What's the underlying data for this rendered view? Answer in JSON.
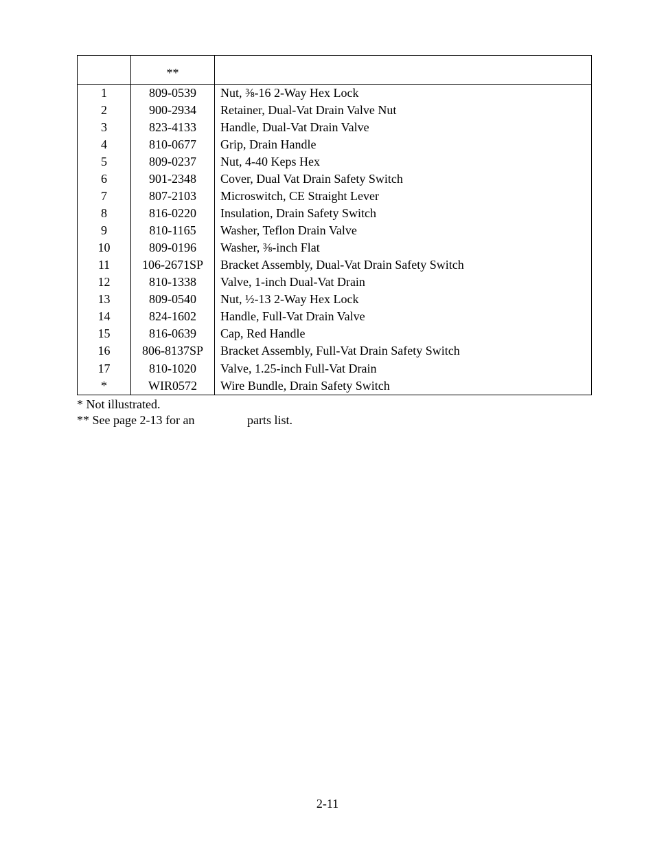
{
  "table": {
    "header": {
      "item": "",
      "part_marker": "**",
      "description": ""
    },
    "rows": [
      {
        "item": "1",
        "part": "809-0539",
        "desc": "Nut, ⅜-16 2-Way Hex Lock"
      },
      {
        "item": "2",
        "part": "900-2934",
        "desc": "Retainer, Dual-Vat Drain Valve Nut"
      },
      {
        "item": "3",
        "part": "823-4133",
        "desc": "Handle, Dual-Vat Drain Valve"
      },
      {
        "item": "4",
        "part": "810-0677",
        "desc": "Grip, Drain Handle"
      },
      {
        "item": "5",
        "part": "809-0237",
        "desc": "Nut, 4-40 Keps Hex"
      },
      {
        "item": "6",
        "part": "901-2348",
        "desc": "Cover, Dual Vat Drain Safety Switch"
      },
      {
        "item": "7",
        "part": "807-2103",
        "desc": "Microswitch, CE Straight Lever"
      },
      {
        "item": "8",
        "part": "816-0220",
        "desc": "Insulation, Drain Safety Switch"
      },
      {
        "item": "9",
        "part": "810-1165",
        "desc": "Washer, Teflon Drain Valve"
      },
      {
        "item": "10",
        "part": "809-0196",
        "desc": "Washer, ⅜-inch Flat"
      },
      {
        "item": "11",
        "part": "106-2671SP",
        "desc": "Bracket Assembly, Dual-Vat Drain Safety Switch"
      },
      {
        "item": "12",
        "part": "810-1338",
        "desc": "Valve, 1-inch Dual-Vat Drain"
      },
      {
        "item": "13",
        "part": "809-0540",
        "desc": "Nut, ½-13 2-Way Hex Lock"
      },
      {
        "item": "14",
        "part": "824-1602",
        "desc": "Handle, Full-Vat Drain Valve"
      },
      {
        "item": "15",
        "part": "816-0639",
        "desc": "Cap, Red Handle"
      },
      {
        "item": "16",
        "part": "806-8137SP",
        "desc": "Bracket Assembly, Full-Vat Drain Safety Switch"
      },
      {
        "item": "17",
        "part": "810-1020",
        "desc": "Valve, 1.25-inch Full-Vat Drain"
      },
      {
        "item": "*",
        "part": "WIR0572",
        "desc": "Wire Bundle, Drain Safety Switch"
      }
    ]
  },
  "notes": {
    "line1": "* Not illustrated.",
    "line2_prefix": "** See page 2-13 for an ",
    "line2_suffix": " parts list."
  },
  "page_number": "2-11"
}
